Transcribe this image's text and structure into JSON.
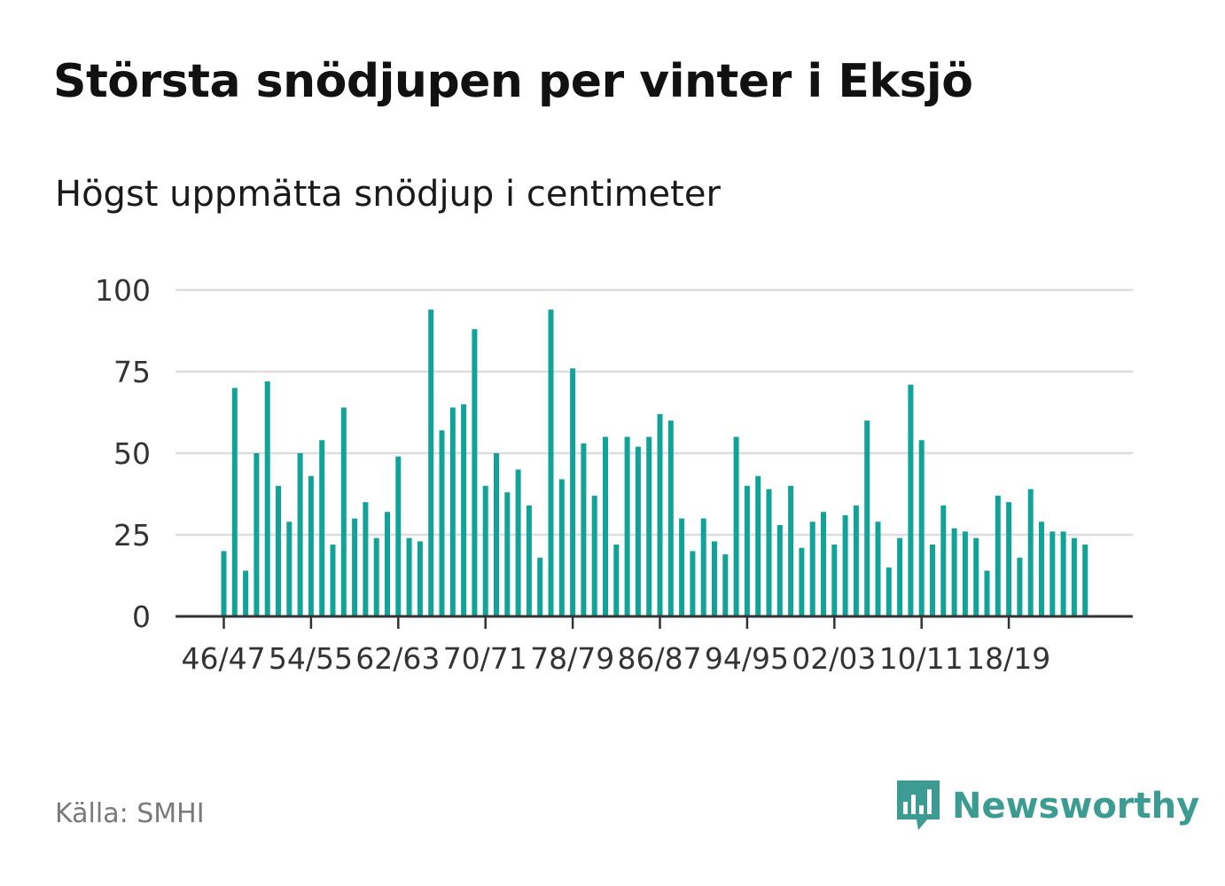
{
  "header": {
    "title": "Största snödjupen per vinter i Eksjö",
    "subtitle": "Högst uppmätta snödjup i centimeter"
  },
  "footer": {
    "source": "Källa: SMHI",
    "brand": "Newsworthy"
  },
  "colors": {
    "bar": "#11a39a",
    "grid": "#dddddd",
    "axis": "#333333",
    "brand": "#3c9b93"
  },
  "chart_data": {
    "type": "bar",
    "title": "Största snödjupen per vinter i Eksjö",
    "ylabel": "",
    "xlabel": "",
    "ylim": [
      0,
      100
    ],
    "yticks": [
      0,
      25,
      50,
      75,
      100
    ],
    "grid": true,
    "x_tick_labels": [
      "46/47",
      "54/55",
      "62/63",
      "70/71",
      "78/79",
      "86/87",
      "94/95",
      "02/03",
      "10/11",
      "18/19"
    ],
    "values": [
      20,
      70,
      14,
      50,
      72,
      40,
      29,
      50,
      43,
      54,
      22,
      64,
      30,
      35,
      24,
      32,
      49,
      24,
      23,
      94,
      57,
      64,
      65,
      88,
      40,
      50,
      38,
      45,
      34,
      18,
      94,
      42,
      76,
      53,
      37,
      55,
      22,
      55,
      52,
      55,
      62,
      60,
      30,
      20,
      30,
      23,
      19,
      55,
      40,
      43,
      39,
      28,
      40,
      21,
      29,
      32,
      22,
      31,
      34,
      60,
      29,
      15,
      24,
      71,
      54,
      22,
      34,
      27,
      26,
      24,
      14,
      37,
      35,
      18,
      39,
      29,
      26,
      26,
      24,
      22
    ]
  }
}
